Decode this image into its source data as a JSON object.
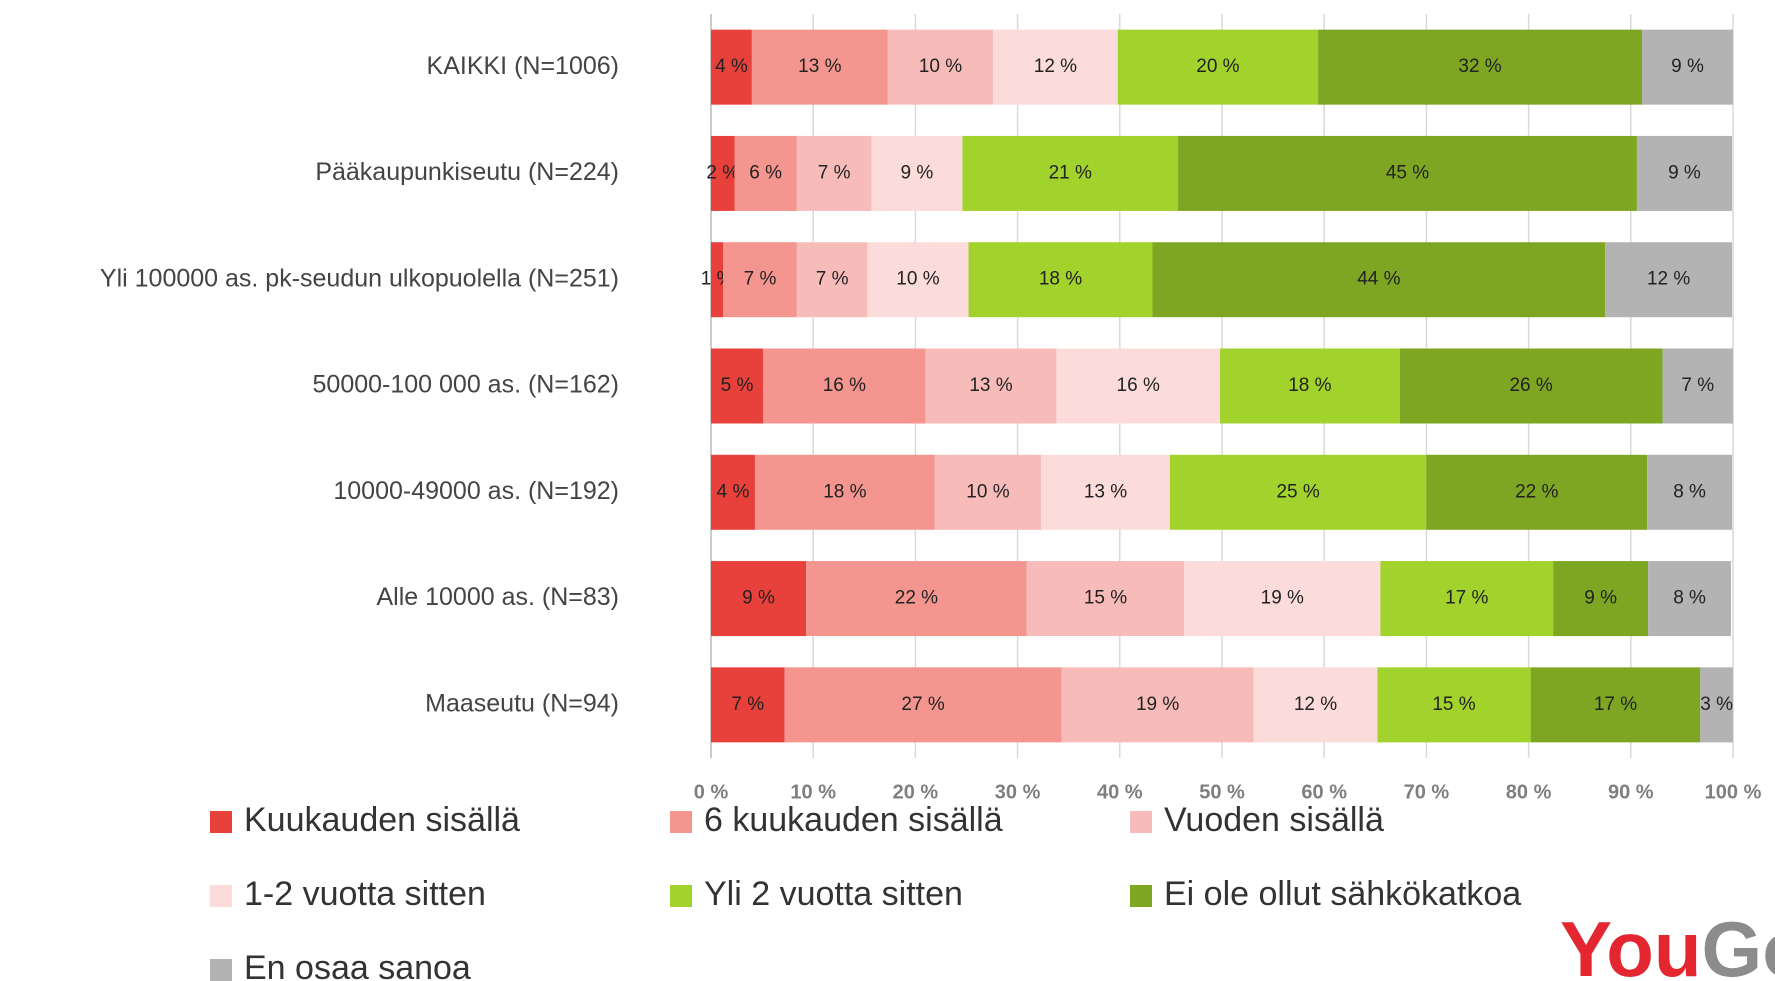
{
  "chart_data": {
    "type": "stacked_barh",
    "categories": [
      "KAIKKI (N=1006)",
      "Pääkaupunkiseutu (N=224)",
      "Yli 100000 as. pk-seudun ulkopuolella (N=251)",
      "50000-100 000 as. (N=162)",
      "10000-49000 as. (N=192)",
      "Alle 10000 as. (N=83)",
      "Maaseutu (N=94)"
    ],
    "series": [
      {
        "name": "Kuukauden sisällä",
        "color": "#e8403a",
        "values": [
          4.0,
          2.3,
          1.2,
          5.1,
          4.3,
          9.3,
          7.2
        ],
        "value_labels": [
          "4 %",
          "2 %",
          "1 %",
          "5 %",
          "4 %",
          "9 %",
          "7 %"
        ]
      },
      {
        "name": "6 kuukauden sisällä",
        "color": "#f4968f",
        "values": [
          13.3,
          6.1,
          7.2,
          15.9,
          17.6,
          21.6,
          27.1
        ],
        "value_labels": [
          "13 %",
          "6 %",
          "7 %",
          "16 %",
          "18 %",
          "22 %",
          "27 %"
        ]
      },
      {
        "name": "Vuoden sisällä",
        "color": "#f7bcb9",
        "values": [
          10.3,
          7.3,
          6.9,
          12.8,
          10.4,
          15.4,
          18.8
        ],
        "value_labels": [
          "10 %",
          "7 %",
          "7 %",
          "13 %",
          "10 %",
          "15 %",
          "19 %"
        ]
      },
      {
        "name": "1-2 vuotta sitten",
        "color": "#fcdcdb",
        "values": [
          12.2,
          8.9,
          9.9,
          16.0,
          12.6,
          19.2,
          12.1
        ],
        "value_labels": [
          "12 %",
          "9 %",
          "10 %",
          "16 %",
          "13 %",
          "19 %",
          "12 %"
        ]
      },
      {
        "name": "Yli 2 vuotta sitten",
        "color": "#a2d22c",
        "values": [
          19.6,
          21.1,
          18.0,
          17.6,
          25.1,
          16.9,
          15.0
        ],
        "value_labels": [
          "20 %",
          "21 %",
          "18 %",
          "18 %",
          "25 %",
          "17 %",
          "15 %"
        ]
      },
      {
        "name": "Ei ole ollut sähkökatkoa",
        "color": "#7ea623",
        "values": [
          31.7,
          44.9,
          44.3,
          25.7,
          21.6,
          9.3,
          16.6
        ],
        "value_labels": [
          "32 %",
          "45 %",
          "44 %",
          "26 %",
          "22 %",
          "9 %",
          "17 %"
        ]
      },
      {
        "name": "En osaa sanoa",
        "color": "#b3b3b3",
        "values": [
          8.9,
          9.3,
          12.4,
          6.9,
          8.3,
          8.1,
          3.2
        ],
        "value_labels": [
          "9 %",
          "9 %",
          "12 %",
          "7 %",
          "8 %",
          "8 %",
          "3 %"
        ]
      }
    ],
    "xlim": [
      0,
      100
    ],
    "xticks": [
      {
        "value": 0,
        "label": "0 %"
      },
      {
        "value": 10,
        "label": "10 %"
      },
      {
        "value": 20,
        "label": "20 %"
      },
      {
        "value": 30,
        "label": "30 %"
      },
      {
        "value": 40,
        "label": "40 %"
      },
      {
        "value": 50,
        "label": "50 %"
      },
      {
        "value": 60,
        "label": "60 %"
      },
      {
        "value": 70,
        "label": "70 %"
      },
      {
        "value": 80,
        "label": "80 %"
      },
      {
        "value": 90,
        "label": "90 %"
      },
      {
        "value": 100,
        "label": "100 %"
      }
    ],
    "grid": true,
    "legend": "bottom",
    "logo": {
      "you": "You",
      "gov": "Gov"
    }
  }
}
